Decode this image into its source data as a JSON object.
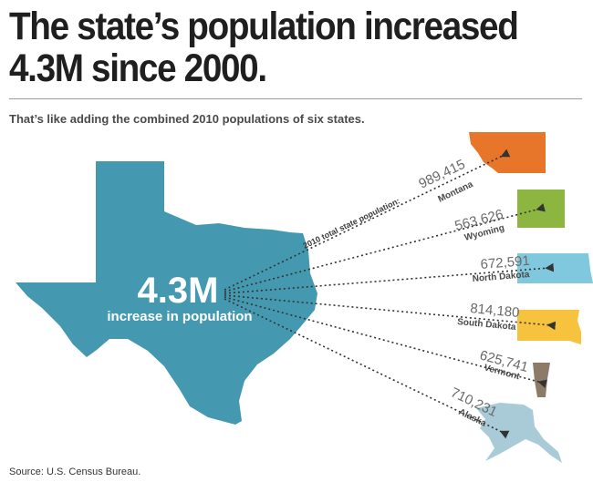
{
  "headline": {
    "line1": "The state’s population increased",
    "line2": "4.3M since 2000."
  },
  "subtitle": "That’s like adding the combined 2010 populations of six states.",
  "center": {
    "value": "4.3M",
    "caption": "increase in population"
  },
  "line_caption": "2010 total state population:",
  "states": [
    {
      "name": "Montana",
      "population": "989,415",
      "color": "#e8762a"
    },
    {
      "name": "Wyoming",
      "population": "563,626",
      "color": "#8cb63f"
    },
    {
      "name": "North Dakota",
      "population": "672,591",
      "color": "#7fc8dd"
    },
    {
      "name": "South Dakota",
      "population": "814,180",
      "color": "#f7c23d"
    },
    {
      "name": "Vermont",
      "population": "625,741",
      "color": "#8c7b69"
    },
    {
      "name": "Alaska",
      "population": "710,231",
      "color": "#a9cbd8"
    }
  ],
  "texas_color": "#4499b0",
  "source": "Source:  U.S. Census Bureau."
}
